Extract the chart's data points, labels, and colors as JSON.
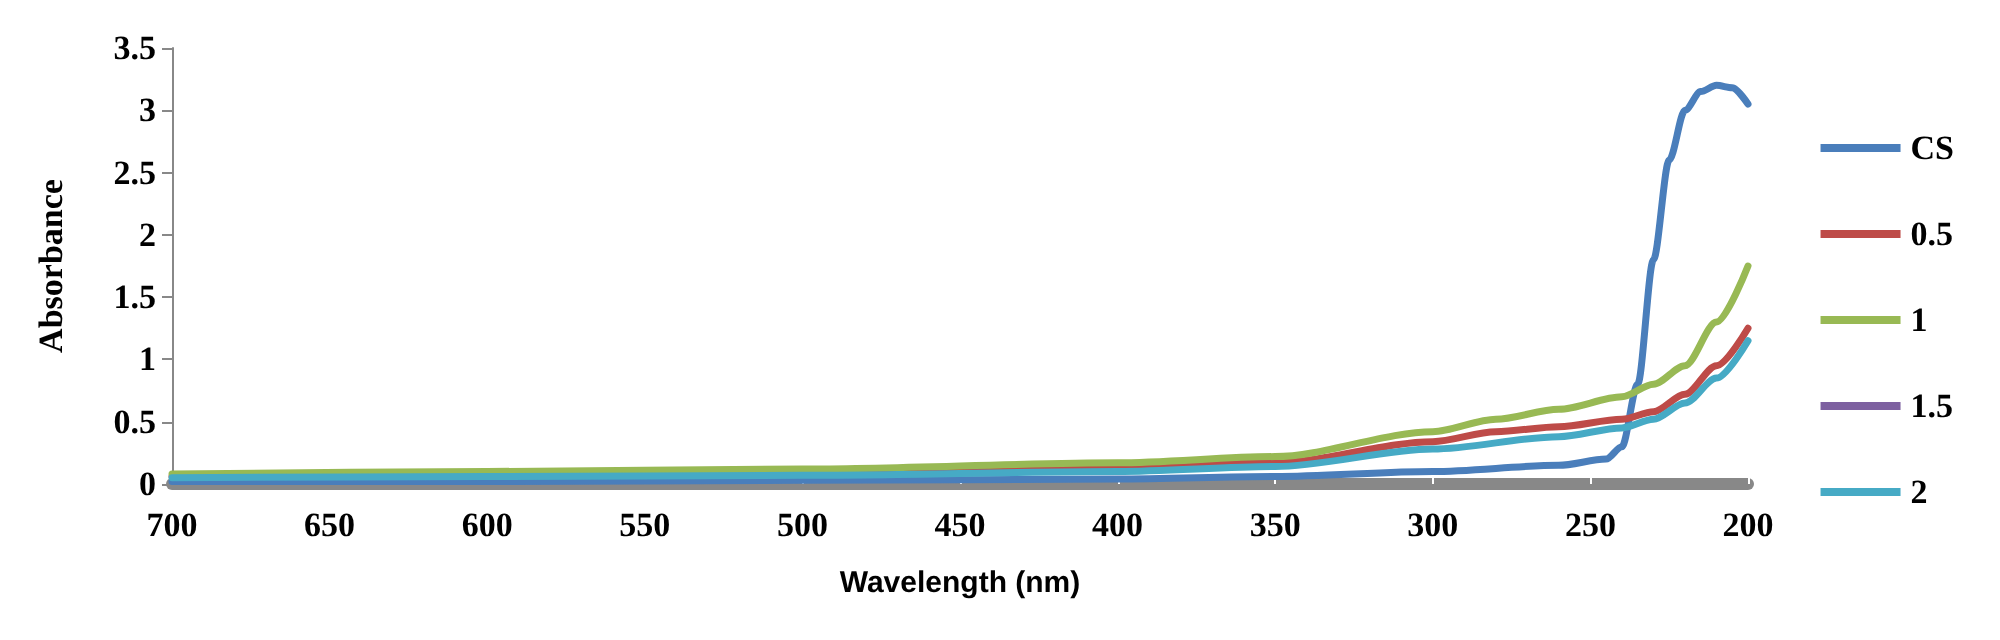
{
  "chart_data": {
    "type": "line",
    "xlabel": "Wavelength (nm)",
    "ylabel": "Absorbance",
    "xlim": [
      700,
      200
    ],
    "xticks": [
      700,
      650,
      600,
      550,
      500,
      450,
      400,
      350,
      300,
      250,
      200
    ],
    "ylim": [
      0,
      3.5
    ],
    "yticks": [
      0,
      0.5,
      1,
      1.5,
      2,
      2.5,
      3,
      3.5
    ],
    "grid": false,
    "legend": "right",
    "marker": "none",
    "line_style": "solid",
    "series": [
      {
        "name": "CS",
        "color": "#4a7ebb",
        "x": [
          700,
          600,
          500,
          400,
          350,
          300,
          260,
          245,
          240,
          235,
          230,
          225,
          220,
          215,
          210,
          205,
          200
        ],
        "values": [
          0.02,
          0.02,
          0.03,
          0.04,
          0.06,
          0.1,
          0.15,
          0.2,
          0.3,
          0.8,
          1.8,
          2.6,
          3.0,
          3.15,
          3.2,
          3.18,
          3.05
        ]
      },
      {
        "name": "0.5",
        "color": "#be4b48",
        "x": [
          700,
          600,
          500,
          400,
          350,
          300,
          280,
          260,
          240,
          230,
          220,
          210,
          200
        ],
        "values": [
          0.06,
          0.07,
          0.09,
          0.12,
          0.17,
          0.34,
          0.42,
          0.46,
          0.52,
          0.58,
          0.72,
          0.95,
          1.25
        ]
      },
      {
        "name": "1",
        "color": "#98b954",
        "x": [
          700,
          600,
          500,
          400,
          350,
          300,
          280,
          260,
          240,
          230,
          220,
          210,
          200
        ],
        "values": [
          0.08,
          0.1,
          0.12,
          0.17,
          0.22,
          0.42,
          0.52,
          0.6,
          0.7,
          0.8,
          0.95,
          1.3,
          1.75
        ]
      },
      {
        "name": "1.5",
        "color": "#7d60a0"
      },
      {
        "name": "2",
        "color": "#46aac5",
        "x": [
          700,
          600,
          500,
          400,
          350,
          300,
          260,
          240,
          230,
          220,
          210,
          200
        ],
        "values": [
          0.05,
          0.06,
          0.07,
          0.1,
          0.14,
          0.28,
          0.38,
          0.45,
          0.52,
          0.65,
          0.85,
          1.15
        ]
      }
    ]
  }
}
